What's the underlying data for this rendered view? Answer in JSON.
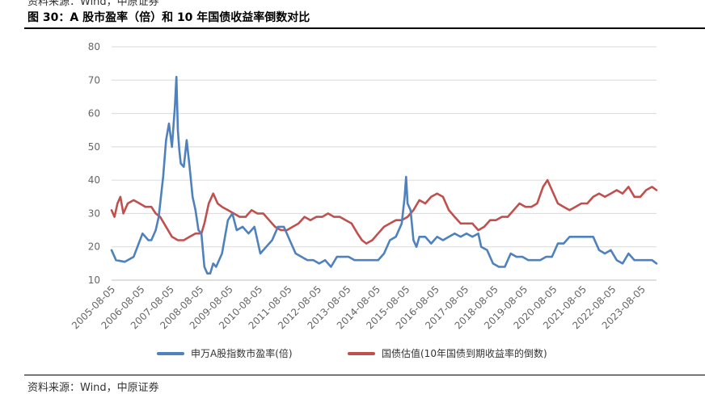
{
  "header": {
    "source_top": "资料来源：Wind，中原证券",
    "title": "图 30：A 股市盈率（倍）和 10 年国债收益率倒数对比"
  },
  "footer": {
    "source_bottom": "资料来源：Wind，中原证券"
  },
  "colors": {
    "series_pe": "#4f81bd",
    "series_bond": "#c0504d",
    "grid": "#d9d9d9"
  },
  "chart_data": {
    "type": "line",
    "title": "",
    "xlabel": "",
    "ylabel": "",
    "ylim": [
      10,
      80
    ],
    "yticks": [
      10,
      20,
      30,
      40,
      50,
      60,
      70,
      80
    ],
    "xlim": [
      2005.45,
      2023.95
    ],
    "grid": "horizontal",
    "legend_position": "bottom",
    "xtick_labels": [
      "2005-08-05",
      "2006-08-05",
      "2007-08-05",
      "2008-08-05",
      "2009-08-05",
      "2010-08-05",
      "2011-08-05",
      "2012-08-05",
      "2013-08-05",
      "2014-08-05",
      "2015-08-05",
      "2016-08-05",
      "2017-08-05",
      "2018-08-05",
      "2019-08-05",
      "2020-08-05",
      "2021-08-05",
      "2022-08-05",
      "2023-08-05"
    ],
    "xtick_values": [
      2005.59,
      2006.59,
      2007.59,
      2008.59,
      2009.59,
      2010.59,
      2011.59,
      2012.59,
      2013.59,
      2014.59,
      2015.59,
      2016.59,
      2017.59,
      2018.59,
      2019.59,
      2020.59,
      2021.59,
      2022.59,
      2023.59
    ],
    "series": [
      {
        "name": "申万A股指数市盈率(倍)",
        "x": [
          2005.45,
          2005.6,
          2005.9,
          2006.2,
          2006.5,
          2006.7,
          2006.8,
          2006.95,
          2007.05,
          2007.2,
          2007.3,
          2007.4,
          2007.5,
          2007.55,
          2007.6,
          2007.65,
          2007.7,
          2007.75,
          2007.8,
          2007.9,
          2007.95,
          2008.0,
          2008.1,
          2008.2,
          2008.3,
          2008.4,
          2008.5,
          2008.6,
          2008.7,
          2008.8,
          2008.9,
          2009.0,
          2009.2,
          2009.4,
          2009.55,
          2009.7,
          2009.9,
          2010.1,
          2010.3,
          2010.5,
          2010.7,
          2010.9,
          2011.1,
          2011.3,
          2011.5,
          2011.7,
          2011.9,
          2012.1,
          2012.3,
          2012.5,
          2012.7,
          2012.9,
          2013.1,
          2013.3,
          2013.5,
          2013.7,
          2013.9,
          2014.1,
          2014.3,
          2014.5,
          2014.7,
          2014.9,
          2015.1,
          2015.3,
          2015.4,
          2015.45,
          2015.5,
          2015.6,
          2015.7,
          2015.8,
          2015.9,
          2016.1,
          2016.3,
          2016.5,
          2016.7,
          2016.9,
          2017.1,
          2017.3,
          2017.5,
          2017.7,
          2017.9,
          2018.0,
          2018.2,
          2018.4,
          2018.6,
          2018.8,
          2019.0,
          2019.2,
          2019.4,
          2019.6,
          2019.8,
          2020.0,
          2020.2,
          2020.4,
          2020.6,
          2020.8,
          2021.0,
          2021.2,
          2021.4,
          2021.6,
          2021.8,
          2022.0,
          2022.2,
          2022.4,
          2022.6,
          2022.8,
          2023.0,
          2023.2,
          2023.4,
          2023.6,
          2023.8,
          2023.95
        ],
        "y": [
          19,
          16,
          15.5,
          17,
          24,
          22,
          22,
          25,
          29,
          41,
          52,
          57,
          50,
          56,
          62,
          71,
          55,
          49,
          45,
          44,
          48,
          52,
          44,
          35,
          31,
          25,
          24,
          14,
          12,
          12,
          15,
          14,
          18,
          28,
          30,
          25,
          26,
          24,
          26,
          18,
          20,
          22,
          26,
          26,
          22,
          18,
          17,
          16,
          16,
          15,
          16,
          14,
          17,
          17,
          17,
          16,
          16,
          16,
          16,
          16,
          18,
          22,
          23,
          27,
          35,
          41,
          33,
          31,
          22,
          20,
          23,
          23,
          21,
          23,
          22,
          23,
          24,
          23,
          24,
          23,
          24,
          20,
          19,
          15,
          14,
          14,
          18,
          17,
          17,
          16,
          16,
          16,
          17,
          17,
          21,
          21,
          23,
          23,
          23,
          23,
          23,
          19,
          18,
          19,
          16,
          15,
          18,
          16,
          16,
          16,
          16,
          15
        ]
      },
      {
        "name": "国债估值(10年国债到期收益率的倒数)",
        "x": [
          2005.45,
          2005.55,
          2005.65,
          2005.75,
          2005.85,
          2006.0,
          2006.2,
          2006.4,
          2006.6,
          2006.8,
          2006.95,
          2007.1,
          2007.3,
          2007.5,
          2007.7,
          2007.9,
          2008.1,
          2008.3,
          2008.5,
          2008.6,
          2008.75,
          2008.9,
          2009.05,
          2009.2,
          2009.4,
          2009.6,
          2009.8,
          2010.0,
          2010.2,
          2010.4,
          2010.6,
          2010.8,
          2011.0,
          2011.2,
          2011.4,
          2011.6,
          2011.8,
          2012.0,
          2012.2,
          2012.4,
          2012.6,
          2012.8,
          2013.0,
          2013.2,
          2013.4,
          2013.6,
          2013.8,
          2013.95,
          2014.1,
          2014.3,
          2014.5,
          2014.7,
          2014.9,
          2015.1,
          2015.3,
          2015.5,
          2015.7,
          2015.9,
          2016.1,
          2016.3,
          2016.5,
          2016.7,
          2016.9,
          2017.1,
          2017.3,
          2017.5,
          2017.7,
          2017.9,
          2018.1,
          2018.3,
          2018.5,
          2018.7,
          2018.9,
          2019.1,
          2019.3,
          2019.5,
          2019.7,
          2019.9,
          2020.1,
          2020.25,
          2020.4,
          2020.6,
          2020.8,
          2021.0,
          2021.2,
          2021.4,
          2021.6,
          2021.8,
          2022.0,
          2022.2,
          2022.4,
          2022.6,
          2022.8,
          2023.0,
          2023.2,
          2023.4,
          2023.6,
          2023.8,
          2023.95
        ],
        "y": [
          31,
          29,
          33,
          35,
          30,
          33,
          34,
          33,
          32,
          32,
          30,
          29,
          26,
          23,
          22,
          22,
          23,
          24,
          24,
          27,
          33,
          36,
          33,
          32,
          31,
          30,
          29,
          29,
          31,
          30,
          30,
          28,
          26,
          25,
          25,
          26,
          27,
          29,
          28,
          29,
          29,
          30,
          29,
          29,
          28,
          27,
          24,
          22,
          21,
          22,
          24,
          26,
          27,
          28,
          28,
          29,
          31,
          34,
          33,
          35,
          36,
          35,
          31,
          29,
          27,
          27,
          27,
          25,
          26,
          28,
          28,
          29,
          29,
          31,
          33,
          32,
          32,
          33,
          38,
          40,
          37,
          33,
          32,
          31,
          32,
          33,
          33,
          35,
          36,
          35,
          36,
          37,
          36,
          38,
          35,
          35,
          37,
          38,
          37
        ]
      }
    ]
  }
}
